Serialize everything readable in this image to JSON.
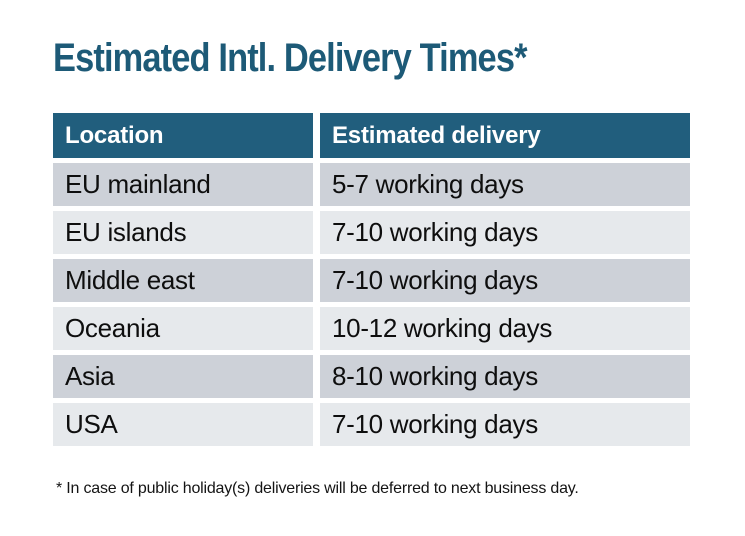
{
  "page": {
    "background": "#ffffff"
  },
  "title": {
    "text": "Estimated Intl. Delivery Times*",
    "color": "#1d5a77"
  },
  "table": {
    "header": {
      "columns": [
        "Location",
        "Estimated delivery"
      ],
      "bg": "#215e7d",
      "text_color": "#ffffff"
    },
    "row_colors": {
      "odd": "#cdd1d8",
      "even": "#e6e9ec"
    },
    "rows": [
      {
        "location": "EU mainland",
        "delivery": "5-7 working days"
      },
      {
        "location": "EU islands",
        "delivery": "7-10 working days"
      },
      {
        "location": "Middle east",
        "delivery": "7-10 working days"
      },
      {
        "location": "Oceania",
        "delivery": "10-12 working days"
      },
      {
        "location": "Asia",
        "delivery": "8-10 working days"
      },
      {
        "location": "USA",
        "delivery": "7-10 working days"
      }
    ]
  },
  "footnote": {
    "text": "* In case of public holiday(s) deliveries will be deferred to next business day."
  }
}
